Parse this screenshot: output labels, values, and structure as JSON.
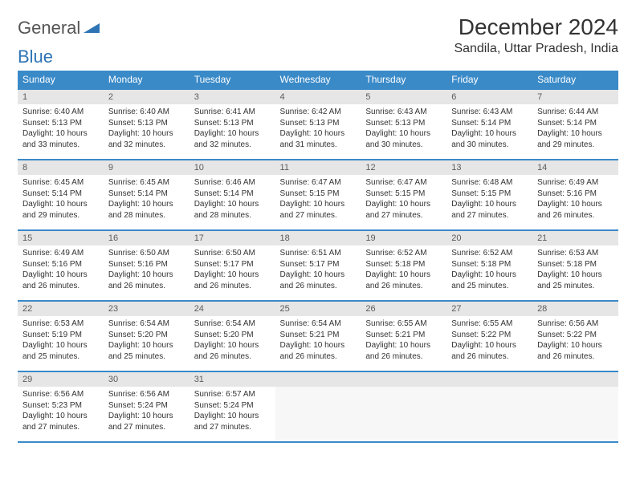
{
  "logo": {
    "text1": "General",
    "text2": "Blue"
  },
  "title": "December 2024",
  "location": "Sandila, Uttar Pradesh, India",
  "colors": {
    "header_bg": "#3a8ac8",
    "header_text": "#ffffff",
    "daynum_bg": "#e6e6e6",
    "border": "#3a8ac8",
    "body_text": "#333333",
    "logo_blue": "#2e74b5"
  },
  "weekdays": [
    "Sunday",
    "Monday",
    "Tuesday",
    "Wednesday",
    "Thursday",
    "Friday",
    "Saturday"
  ],
  "weeks": [
    [
      {
        "n": "1",
        "sr": "Sunrise: 6:40 AM",
        "ss": "Sunset: 5:13 PM",
        "dl": "Daylight: 10 hours and 33 minutes."
      },
      {
        "n": "2",
        "sr": "Sunrise: 6:40 AM",
        "ss": "Sunset: 5:13 PM",
        "dl": "Daylight: 10 hours and 32 minutes."
      },
      {
        "n": "3",
        "sr": "Sunrise: 6:41 AM",
        "ss": "Sunset: 5:13 PM",
        "dl": "Daylight: 10 hours and 32 minutes."
      },
      {
        "n": "4",
        "sr": "Sunrise: 6:42 AM",
        "ss": "Sunset: 5:13 PM",
        "dl": "Daylight: 10 hours and 31 minutes."
      },
      {
        "n": "5",
        "sr": "Sunrise: 6:43 AM",
        "ss": "Sunset: 5:13 PM",
        "dl": "Daylight: 10 hours and 30 minutes."
      },
      {
        "n": "6",
        "sr": "Sunrise: 6:43 AM",
        "ss": "Sunset: 5:14 PM",
        "dl": "Daylight: 10 hours and 30 minutes."
      },
      {
        "n": "7",
        "sr": "Sunrise: 6:44 AM",
        "ss": "Sunset: 5:14 PM",
        "dl": "Daylight: 10 hours and 29 minutes."
      }
    ],
    [
      {
        "n": "8",
        "sr": "Sunrise: 6:45 AM",
        "ss": "Sunset: 5:14 PM",
        "dl": "Daylight: 10 hours and 29 minutes."
      },
      {
        "n": "9",
        "sr": "Sunrise: 6:45 AM",
        "ss": "Sunset: 5:14 PM",
        "dl": "Daylight: 10 hours and 28 minutes."
      },
      {
        "n": "10",
        "sr": "Sunrise: 6:46 AM",
        "ss": "Sunset: 5:14 PM",
        "dl": "Daylight: 10 hours and 28 minutes."
      },
      {
        "n": "11",
        "sr": "Sunrise: 6:47 AM",
        "ss": "Sunset: 5:15 PM",
        "dl": "Daylight: 10 hours and 27 minutes."
      },
      {
        "n": "12",
        "sr": "Sunrise: 6:47 AM",
        "ss": "Sunset: 5:15 PM",
        "dl": "Daylight: 10 hours and 27 minutes."
      },
      {
        "n": "13",
        "sr": "Sunrise: 6:48 AM",
        "ss": "Sunset: 5:15 PM",
        "dl": "Daylight: 10 hours and 27 minutes."
      },
      {
        "n": "14",
        "sr": "Sunrise: 6:49 AM",
        "ss": "Sunset: 5:16 PM",
        "dl": "Daylight: 10 hours and 26 minutes."
      }
    ],
    [
      {
        "n": "15",
        "sr": "Sunrise: 6:49 AM",
        "ss": "Sunset: 5:16 PM",
        "dl": "Daylight: 10 hours and 26 minutes."
      },
      {
        "n": "16",
        "sr": "Sunrise: 6:50 AM",
        "ss": "Sunset: 5:16 PM",
        "dl": "Daylight: 10 hours and 26 minutes."
      },
      {
        "n": "17",
        "sr": "Sunrise: 6:50 AM",
        "ss": "Sunset: 5:17 PM",
        "dl": "Daylight: 10 hours and 26 minutes."
      },
      {
        "n": "18",
        "sr": "Sunrise: 6:51 AM",
        "ss": "Sunset: 5:17 PM",
        "dl": "Daylight: 10 hours and 26 minutes."
      },
      {
        "n": "19",
        "sr": "Sunrise: 6:52 AM",
        "ss": "Sunset: 5:18 PM",
        "dl": "Daylight: 10 hours and 26 minutes."
      },
      {
        "n": "20",
        "sr": "Sunrise: 6:52 AM",
        "ss": "Sunset: 5:18 PM",
        "dl": "Daylight: 10 hours and 25 minutes."
      },
      {
        "n": "21",
        "sr": "Sunrise: 6:53 AM",
        "ss": "Sunset: 5:18 PM",
        "dl": "Daylight: 10 hours and 25 minutes."
      }
    ],
    [
      {
        "n": "22",
        "sr": "Sunrise: 6:53 AM",
        "ss": "Sunset: 5:19 PM",
        "dl": "Daylight: 10 hours and 25 minutes."
      },
      {
        "n": "23",
        "sr": "Sunrise: 6:54 AM",
        "ss": "Sunset: 5:20 PM",
        "dl": "Daylight: 10 hours and 25 minutes."
      },
      {
        "n": "24",
        "sr": "Sunrise: 6:54 AM",
        "ss": "Sunset: 5:20 PM",
        "dl": "Daylight: 10 hours and 26 minutes."
      },
      {
        "n": "25",
        "sr": "Sunrise: 6:54 AM",
        "ss": "Sunset: 5:21 PM",
        "dl": "Daylight: 10 hours and 26 minutes."
      },
      {
        "n": "26",
        "sr": "Sunrise: 6:55 AM",
        "ss": "Sunset: 5:21 PM",
        "dl": "Daylight: 10 hours and 26 minutes."
      },
      {
        "n": "27",
        "sr": "Sunrise: 6:55 AM",
        "ss": "Sunset: 5:22 PM",
        "dl": "Daylight: 10 hours and 26 minutes."
      },
      {
        "n": "28",
        "sr": "Sunrise: 6:56 AM",
        "ss": "Sunset: 5:22 PM",
        "dl": "Daylight: 10 hours and 26 minutes."
      }
    ],
    [
      {
        "n": "29",
        "sr": "Sunrise: 6:56 AM",
        "ss": "Sunset: 5:23 PM",
        "dl": "Daylight: 10 hours and 27 minutes."
      },
      {
        "n": "30",
        "sr": "Sunrise: 6:56 AM",
        "ss": "Sunset: 5:24 PM",
        "dl": "Daylight: 10 hours and 27 minutes."
      },
      {
        "n": "31",
        "sr": "Sunrise: 6:57 AM",
        "ss": "Sunset: 5:24 PM",
        "dl": "Daylight: 10 hours and 27 minutes."
      },
      {
        "empty": true
      },
      {
        "empty": true
      },
      {
        "empty": true
      },
      {
        "empty": true
      }
    ]
  ]
}
